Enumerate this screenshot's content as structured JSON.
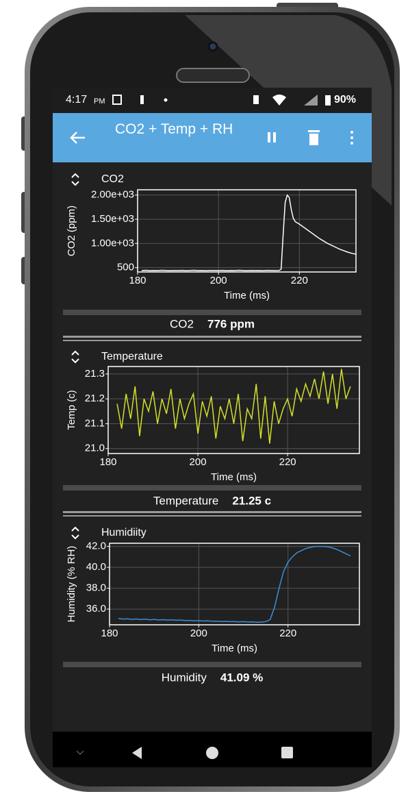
{
  "status_bar": {
    "time": "4:17",
    "ampm": "PM",
    "battery": "90%"
  },
  "app_bar": {
    "title": "CO2 + Temp + RH"
  },
  "chart_data": [
    {
      "type": "line",
      "title": "CO2",
      "xlabel": "Time (ms)",
      "ylabel": "CO2 (ppm)",
      "xlim": [
        180,
        234
      ],
      "xticks": [
        180,
        200,
        220
      ],
      "ylim": [
        410,
        2110
      ],
      "yticks": [
        {
          "value": 2000,
          "label": "2.00e+03"
        },
        {
          "value": 1500,
          "label": "1.50e+03"
        },
        {
          "value": 1000,
          "label": "1.00e+03"
        },
        500
      ],
      "grid": true,
      "series": [
        {
          "name": "CO2",
          "color": "#ffffff",
          "x": [
            181,
            182,
            183,
            184,
            185,
            186,
            187,
            188,
            189,
            190,
            191,
            192,
            193,
            194,
            195,
            196,
            197,
            198,
            199,
            200,
            201,
            202,
            203,
            204,
            205,
            206,
            207,
            208,
            209,
            210,
            211,
            212,
            213,
            214,
            215,
            215.5,
            216,
            216.5,
            217,
            217.5,
            218,
            218.5,
            219,
            220,
            221,
            222,
            223,
            224,
            225,
            226,
            227,
            228,
            229,
            230,
            231,
            232,
            233,
            234
          ],
          "values": [
            440,
            445,
            438,
            442,
            440,
            446,
            441,
            439,
            443,
            440,
            444,
            438,
            441,
            445,
            440,
            442,
            439,
            443,
            441,
            440,
            444,
            438,
            442,
            440,
            445,
            441,
            439,
            443,
            440,
            442,
            438,
            444,
            441,
            440,
            443,
            470,
            1200,
            1850,
            2000,
            1950,
            1700,
            1520,
            1450,
            1400,
            1340,
            1280,
            1220,
            1160,
            1100,
            1050,
            1000,
            960,
            920,
            880,
            850,
            820,
            795,
            776
          ]
        }
      ]
    },
    {
      "type": "line",
      "title": "Temperature",
      "xlabel": "Time (ms)",
      "ylabel": "Temp (c)",
      "xlim": [
        180,
        236
      ],
      "xticks": [
        180,
        200,
        220
      ],
      "ylim": [
        20.98,
        21.33
      ],
      "yticks": [
        {
          "value": 21,
          "label": "21.0"
        },
        21.1,
        21.2,
        21.3
      ],
      "grid": true,
      "series": [
        {
          "name": "Temperature",
          "color": "#d4e02a",
          "x": [
            182,
            183,
            184,
            185,
            186,
            187,
            188,
            189,
            190,
            191,
            192,
            193,
            194,
            195,
            196,
            197,
            198,
            199,
            200,
            201,
            202,
            203,
            204,
            205,
            206,
            207,
            208,
            209,
            210,
            211,
            212,
            213,
            214,
            215,
            216,
            217,
            218,
            219,
            220,
            221,
            222,
            223,
            224,
            225,
            226,
            227,
            228,
            229,
            230,
            231,
            232,
            233,
            234
          ],
          "values": [
            21.18,
            21.08,
            21.22,
            21.12,
            21.25,
            21.05,
            21.2,
            21.15,
            21.23,
            21.1,
            21.2,
            21.14,
            21.24,
            21.08,
            21.2,
            21.12,
            21.18,
            21.22,
            21.06,
            21.19,
            21.13,
            21.21,
            21.04,
            21.17,
            21.12,
            21.2,
            21.1,
            21.22,
            21.03,
            21.16,
            21.12,
            21.26,
            21.04,
            21.21,
            21.02,
            21.19,
            21.1,
            21.16,
            21.2,
            21.13,
            21.24,
            21.19,
            21.26,
            21.21,
            21.28,
            21.2,
            21.31,
            21.18,
            21.3,
            21.16,
            21.32,
            21.2,
            21.25
          ]
        }
      ]
    },
    {
      "type": "line",
      "title": "Humidiity",
      "xlabel": "Time (ms)",
      "ylabel": "Humidity (% RH)",
      "xlim": [
        180,
        236
      ],
      "xticks": [
        180,
        200,
        220
      ],
      "ylim": [
        34.5,
        42.3
      ],
      "yticks": [
        {
          "value": 42,
          "label": "42.0"
        },
        {
          "value": 40,
          "label": "40.0"
        },
        {
          "value": 38,
          "label": "38.0"
        },
        {
          "value": 36,
          "label": "36.0"
        }
      ],
      "grid": true,
      "series": [
        {
          "name": "Humidity",
          "color": "#3b8fd8",
          "x": [
            182,
            183,
            184,
            185,
            186,
            187,
            188,
            189,
            190,
            191,
            192,
            193,
            194,
            195,
            196,
            197,
            198,
            199,
            200,
            201,
            202,
            203,
            204,
            205,
            206,
            207,
            208,
            209,
            210,
            211,
            212,
            213,
            214,
            215,
            216,
            217,
            218,
            219,
            220,
            221,
            222,
            223,
            224,
            225,
            226,
            227,
            228,
            229,
            230,
            231,
            232,
            233,
            234
          ],
          "values": [
            35.1,
            35.05,
            35.08,
            35.02,
            35.06,
            35.0,
            35.04,
            34.98,
            35.02,
            34.96,
            34.99,
            34.95,
            34.97,
            34.93,
            34.95,
            34.9,
            34.92,
            34.88,
            34.9,
            34.86,
            34.88,
            34.84,
            34.85,
            34.82,
            34.83,
            34.8,
            34.81,
            34.78,
            34.8,
            34.77,
            34.78,
            34.75,
            34.76,
            34.8,
            35.0,
            36.2,
            38.0,
            39.6,
            40.5,
            41.0,
            41.4,
            41.6,
            41.8,
            41.9,
            42.0,
            42.0,
            42.0,
            41.95,
            41.85,
            41.7,
            41.5,
            41.3,
            41.09
          ]
        }
      ]
    }
  ],
  "readouts": [
    {
      "label": "CO2",
      "value": "776 ppm"
    },
    {
      "label": "Temperature",
      "value": "21.25 c"
    },
    {
      "label": "Humidity",
      "value": "41.09 %"
    }
  ]
}
